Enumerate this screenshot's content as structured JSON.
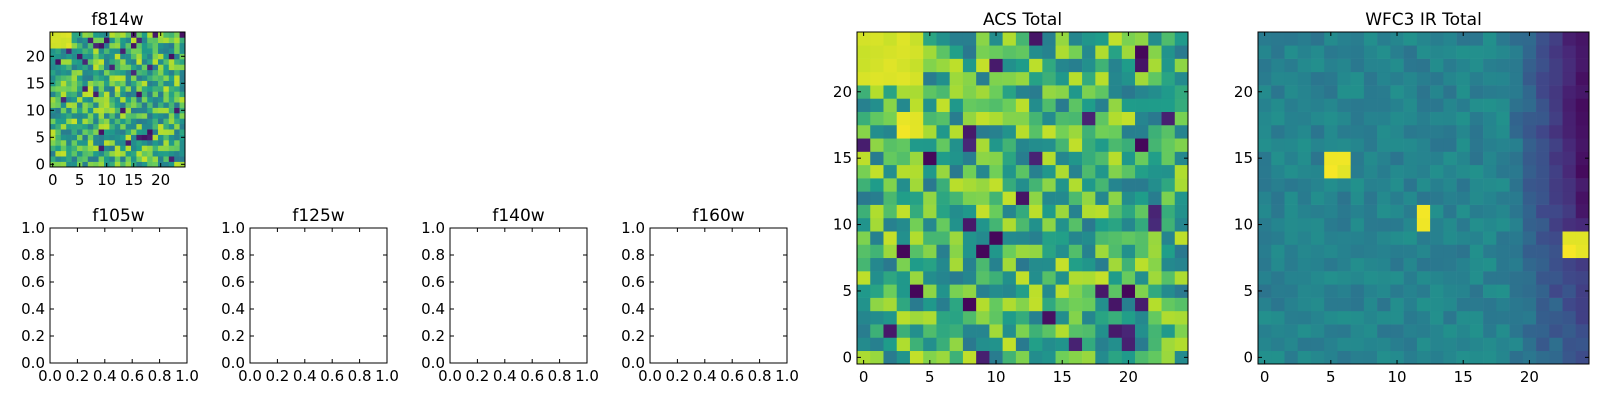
{
  "chart_data": [
    {
      "id": "f814w",
      "type": "heatmap",
      "title": "f814w",
      "xlabel": "",
      "ylabel": "",
      "xlim": [
        -0.5,
        24.5
      ],
      "ylim": [
        -0.5,
        24.5
      ],
      "xticks": [
        0,
        5,
        10,
        15,
        20
      ],
      "yticks": [
        0,
        5,
        10,
        15,
        20
      ],
      "grid_size": [
        25,
        25
      ],
      "colormap": "viridis",
      "pattern": "noise",
      "hot_regions": [
        {
          "x": [
            0,
            3
          ],
          "y": [
            22,
            24
          ],
          "level": 0.95
        }
      ]
    },
    {
      "id": "f105w",
      "type": "empty",
      "title": "f105w",
      "xlim": [
        0,
        1
      ],
      "ylim": [
        0,
        1
      ],
      "xticks": [
        "0.0",
        "0.2",
        "0.4",
        "0.6",
        "0.8",
        "1.0"
      ],
      "yticks": [
        "0.0",
        "0.2",
        "0.4",
        "0.6",
        "0.8",
        "1.0"
      ]
    },
    {
      "id": "f125w",
      "type": "empty",
      "title": "f125w",
      "xlim": [
        0,
        1
      ],
      "ylim": [
        0,
        1
      ],
      "xticks": [
        "0.0",
        "0.2",
        "0.4",
        "0.6",
        "0.8",
        "1.0"
      ],
      "yticks": [
        "0.0",
        "0.2",
        "0.4",
        "0.6",
        "0.8",
        "1.0"
      ]
    },
    {
      "id": "f140w",
      "type": "empty",
      "title": "f140w",
      "xlim": [
        0,
        1
      ],
      "ylim": [
        0,
        1
      ],
      "xticks": [
        "0.0",
        "0.2",
        "0.4",
        "0.6",
        "0.8",
        "1.0"
      ],
      "yticks": [
        "0.0",
        "0.2",
        "0.4",
        "0.6",
        "0.8",
        "1.0"
      ]
    },
    {
      "id": "f160w",
      "type": "empty",
      "title": "f160w",
      "xlim": [
        0,
        1
      ],
      "ylim": [
        0,
        1
      ],
      "xticks": [
        "0.0",
        "0.2",
        "0.4",
        "0.6",
        "0.8",
        "1.0"
      ],
      "yticks": [
        "0.0",
        "0.2",
        "0.4",
        "0.6",
        "0.8",
        "1.0"
      ]
    },
    {
      "id": "acs-total",
      "type": "heatmap",
      "title": "ACS Total",
      "xlim": [
        -0.5,
        24.5
      ],
      "ylim": [
        -0.5,
        24.5
      ],
      "xticks": [
        0,
        5,
        10,
        15,
        20
      ],
      "yticks": [
        0,
        5,
        10,
        15,
        20
      ],
      "grid_size": [
        25,
        25
      ],
      "colormap": "viridis",
      "pattern": "noise",
      "hot_regions": [
        {
          "x": [
            0,
            4
          ],
          "y": [
            21,
            24
          ],
          "level": 0.95
        },
        {
          "x": [
            3,
            4
          ],
          "y": [
            17,
            18
          ],
          "level": 0.98
        }
      ],
      "dark_cells": [
        [
          5,
          15
        ],
        [
          3,
          8
        ],
        [
          9,
          8
        ],
        [
          10,
          9
        ],
        [
          4,
          5
        ],
        [
          20,
          5
        ],
        [
          21,
          23
        ],
        [
          21,
          16
        ],
        [
          8,
          4
        ]
      ]
    },
    {
      "id": "wfc3-ir-total",
      "type": "heatmap",
      "title": "WFC3 IR Total",
      "xlim": [
        -0.5,
        24.5
      ],
      "ylim": [
        -0.5,
        24.5
      ],
      "xticks": [
        0,
        5,
        10,
        15,
        20
      ],
      "yticks": [
        0,
        5,
        10,
        15,
        20
      ],
      "grid_size": [
        25,
        25
      ],
      "colormap": "viridis",
      "pattern": "smooth",
      "base_level": 0.5,
      "hot_regions": [
        {
          "x": [
            5,
            6
          ],
          "y": [
            14,
            15
          ],
          "level": 1.0
        },
        {
          "x": [
            12,
            12
          ],
          "y": [
            10,
            11
          ],
          "level": 1.0
        },
        {
          "x": [
            23,
            24
          ],
          "y": [
            8,
            9
          ],
          "level": 1.0
        }
      ],
      "dark_band": {
        "x": [
          19,
          24
        ],
        "y": [
          0,
          24
        ],
        "level": 0.05
      }
    }
  ]
}
